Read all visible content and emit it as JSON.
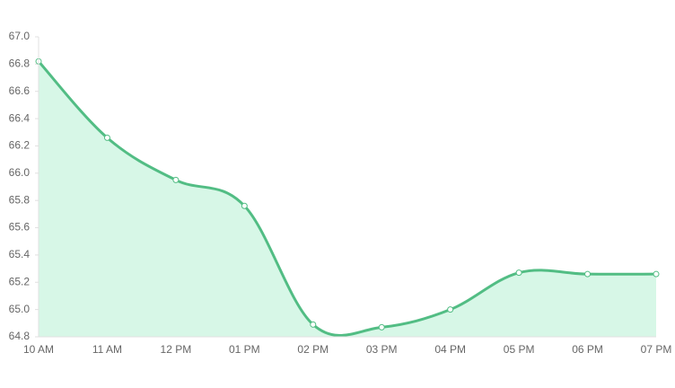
{
  "chart_data": {
    "type": "area",
    "categories": [
      "10 AM",
      "11 AM",
      "12 PM",
      "01 PM",
      "02 PM",
      "03 PM",
      "04 PM",
      "05 PM",
      "06 PM",
      "07 PM"
    ],
    "series": [
      {
        "color": "#52bd84",
        "fill": "#d7f7e7",
        "values": [
          66.82,
          66.26,
          65.95,
          65.76,
          64.89,
          64.87,
          65.0,
          65.27,
          65.26,
          65.26
        ]
      }
    ],
    "ylim": [
      64.8,
      67.0
    ],
    "yticks": [
      {
        "value": 64.8,
        "label": "64.8"
      },
      {
        "value": 65.0,
        "label": "65.0"
      },
      {
        "value": 65.2,
        "label": "65.2"
      },
      {
        "value": 65.4,
        "label": "65.4"
      },
      {
        "value": 65.6,
        "label": "65.6"
      },
      {
        "value": 65.8,
        "label": "65.8"
      },
      {
        "value": 66.0,
        "label": "66.0"
      },
      {
        "value": 66.2,
        "label": "66.2"
      },
      {
        "value": 66.4,
        "label": "66.4"
      },
      {
        "value": 66.6,
        "label": "66.6"
      },
      {
        "value": 66.8,
        "label": "66.8"
      },
      {
        "value": 67.0,
        "label": "67.0"
      }
    ],
    "grid": false
  }
}
